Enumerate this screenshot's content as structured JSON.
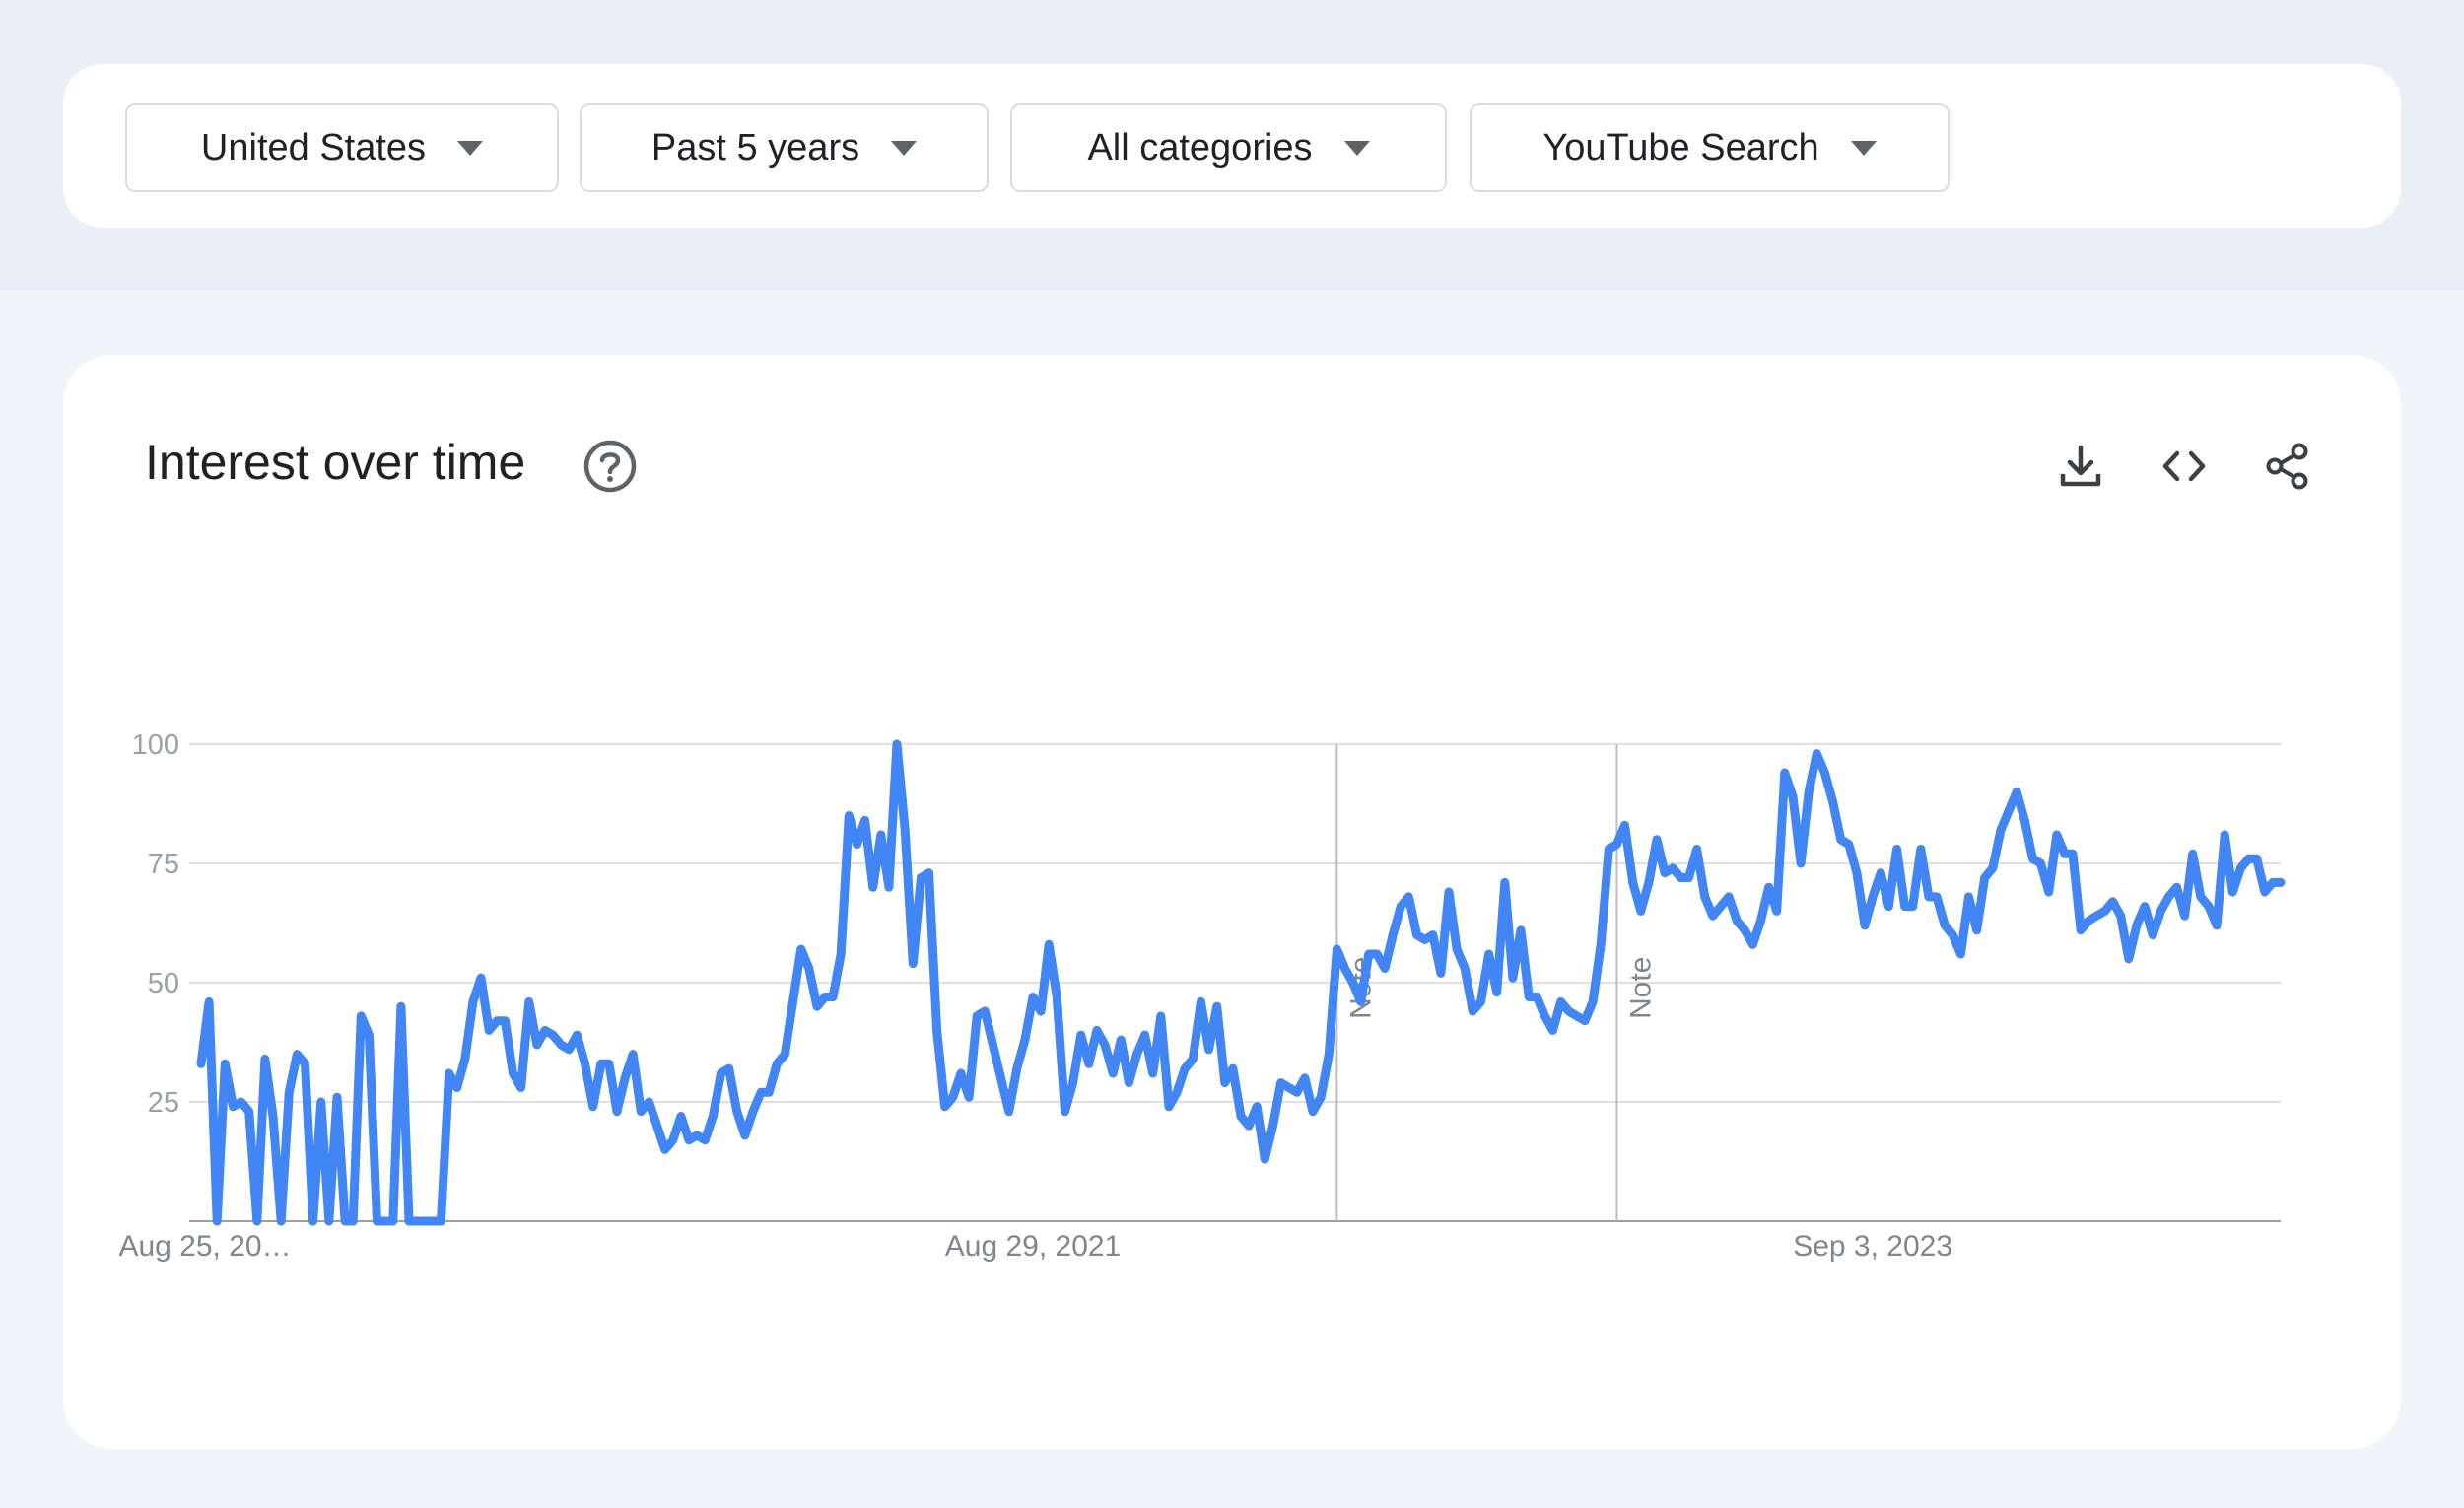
{
  "filters": [
    {
      "label": "United States"
    },
    {
      "label": "Past 5 years"
    },
    {
      "label": "All categories"
    },
    {
      "label": "YouTube Search"
    }
  ],
  "card": {
    "title": "Interest over time",
    "icons": [
      "help-icon",
      "download-icon",
      "embed-code-icon",
      "share-icon"
    ]
  },
  "colors": {
    "series": "#4285f4",
    "grid": "#e0e0e0",
    "background": "#f1f4f9",
    "top_band": "#e9eef7"
  },
  "chart_data": {
    "type": "line",
    "title": "Interest over time",
    "xlabel": "",
    "ylabel": "",
    "ylim": [
      0,
      100
    ],
    "yticks": [
      100,
      75,
      50,
      25
    ],
    "grid": true,
    "xtick_labels": [
      {
        "label": "Aug 25, 20…",
        "week_index": 0
      },
      {
        "label": "Aug 29, 2021",
        "week_index": 104
      },
      {
        "label": "Sep 3, 2023",
        "week_index": 209
      }
    ],
    "notes": [
      {
        "label": "Note",
        "week_index": 142
      },
      {
        "label": "Note",
        "week_index": 177
      }
    ],
    "series": [
      {
        "values": [
          33,
          46,
          0,
          33,
          24,
          25,
          23,
          0,
          34,
          22,
          0,
          27,
          35,
          33,
          0,
          25,
          0,
          26,
          0,
          0,
          43,
          39,
          0,
          0,
          0,
          45,
          0,
          0,
          0,
          0,
          0,
          31,
          28,
          34,
          46,
          51,
          40,
          42,
          42,
          31,
          28,
          46,
          37,
          40,
          39,
          37,
          36,
          39,
          33,
          24,
          33,
          33,
          23,
          30,
          35,
          23,
          25,
          20,
          15,
          17,
          22,
          17,
          18,
          17,
          22,
          31,
          32,
          23,
          18,
          23,
          27,
          27,
          33,
          35,
          46,
          57,
          53,
          45,
          47,
          47,
          56,
          85,
          79,
          84,
          70,
          81,
          70,
          100,
          82,
          54,
          72,
          73,
          40,
          24,
          26,
          31,
          26,
          43,
          44,
          37,
          30,
          23,
          32,
          38,
          47,
          44,
          58,
          47,
          23,
          29,
          39,
          33,
          40,
          37,
          31,
          38,
          29,
          35,
          39,
          31,
          43,
          24,
          27,
          32,
          34,
          46,
          36,
          45,
          29,
          32,
          22,
          20,
          24,
          13,
          20,
          29,
          28,
          27,
          30,
          23,
          26,
          35,
          57,
          53,
          50,
          46,
          56,
          56,
          53,
          60,
          66,
          68,
          60,
          59,
          60,
          52,
          69,
          57,
          53,
          44,
          46,
          56,
          48,
          71,
          51,
          61,
          47,
          47,
          43,
          40,
          46,
          44,
          43,
          42,
          46,
          58,
          78,
          79,
          83,
          71,
          65,
          71,
          80,
          73,
          74,
          72,
          72,
          78,
          68,
          64,
          66,
          68,
          63,
          61,
          58,
          63,
          70,
          65,
          94,
          89,
          75,
          90,
          98,
          94,
          88,
          80,
          79,
          73,
          62,
          68,
          73,
          66,
          78,
          66,
          66,
          78,
          68,
          68,
          62,
          60,
          56,
          68,
          61,
          72,
          74,
          82,
          86,
          90,
          84,
          76,
          75,
          69,
          81,
          77,
          77,
          61,
          63,
          64,
          65,
          67,
          64,
          55,
          62,
          66,
          60,
          65,
          68,
          70,
          64,
          77,
          68,
          66,
          62,
          81,
          69,
          74,
          76,
          76,
          69,
          71,
          71
        ]
      }
    ]
  }
}
